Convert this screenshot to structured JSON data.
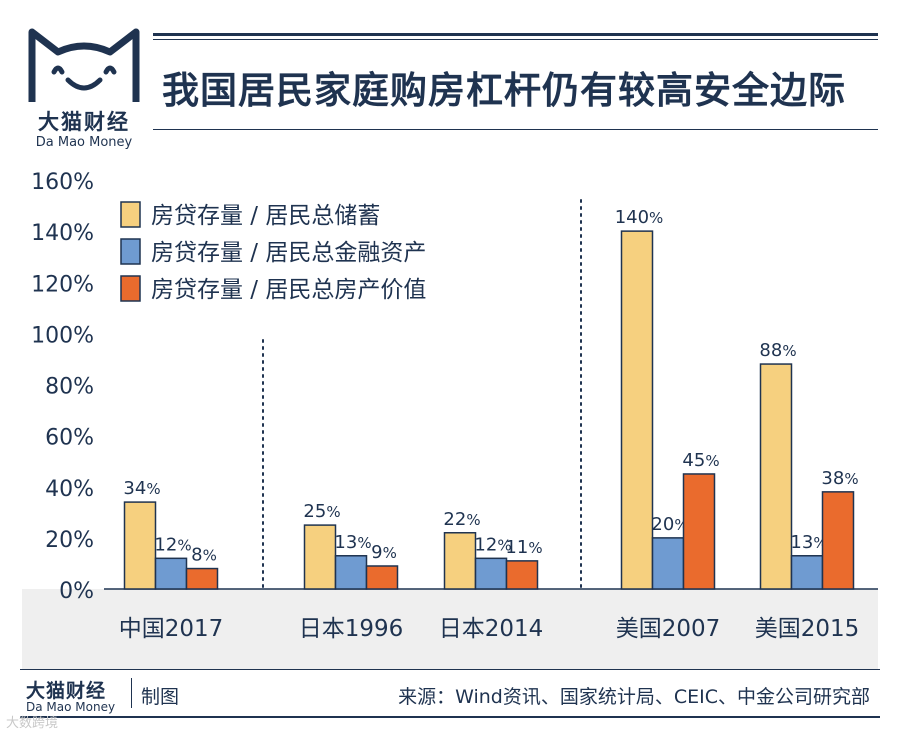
{
  "brand": {
    "name_cn": "大猫财经",
    "name_en": "Da Mao Money"
  },
  "title": "我国居民家庭购房杠杆仍有较高安全边际",
  "footer": {
    "brand_cn": "大猫财经",
    "brand_en": "Da Mao Money",
    "made": "制图",
    "source": "来源：Wind资讯、国家统计局、CEIC、中金公司研究部"
  },
  "watermark": "大数跨境",
  "colors": {
    "navy": "#1f3350",
    "savings": "#f6d07f",
    "financial": "#6f9bd1",
    "property": "#ea6b2d",
    "band": "#efefef"
  },
  "chart_data": {
    "type": "bar",
    "title": "我国居民家庭购房杠杆仍有较高安全边际",
    "categories": [
      "中国2017",
      "日本1996",
      "日本2014",
      "美国2007",
      "美国2015"
    ],
    "series": [
      {
        "name": "房贷存量 / 居民总储蓄",
        "color": "#f6d07f",
        "values": [
          34,
          25,
          22,
          140,
          88
        ]
      },
      {
        "name": "房贷存量 / 居民总金融资产",
        "color": "#6f9bd1",
        "values": [
          12,
          13,
          12,
          20,
          13
        ]
      },
      {
        "name": "房贷存量 / 居民总房产价值",
        "color": "#ea6b2d",
        "values": [
          8,
          9,
          11,
          45,
          38
        ]
      }
    ],
    "value_suffix": "%",
    "ylim": [
      0,
      160
    ],
    "yticks": [
      0,
      20,
      40,
      60,
      80,
      100,
      120,
      140,
      160
    ],
    "ytick_labels": [
      "0%",
      "20%",
      "40%",
      "60%",
      "80%",
      "100%",
      "120%",
      "140%",
      "160%"
    ],
    "legend_position": "top-left",
    "group_separators": "dotted lines between 中国, 日本 and 美国 groups",
    "xlabel": "",
    "ylabel": ""
  }
}
